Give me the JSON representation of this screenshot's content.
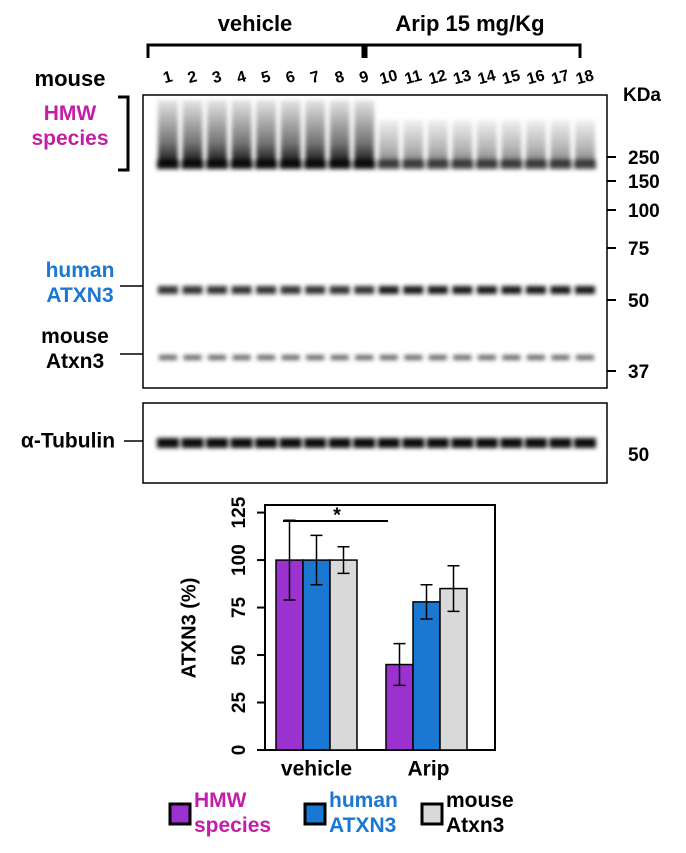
{
  "blot": {
    "groups": [
      "vehicle",
      "Arip 15 mg/Kg"
    ],
    "row_label": "mouse",
    "lanes": [
      "1",
      "2",
      "3",
      "4",
      "5",
      "6",
      "7",
      "8",
      "9",
      "10",
      "11",
      "12",
      "13",
      "14",
      "15",
      "16",
      "17",
      "18"
    ],
    "unit": "KDa",
    "markers": [
      250,
      150,
      100,
      75,
      50,
      37
    ],
    "band_labels": [
      "HMW species",
      "human ATXN3",
      "mouse Atxn3"
    ],
    "loading_label": "α-Tubulin",
    "loading_marker": 50
  },
  "chart_data": {
    "type": "bar",
    "ylabel": "ATXN3 (%)",
    "categories": [
      "vehicle",
      "Arip"
    ],
    "series": [
      {
        "name": "HMW species",
        "color": "#9b32cf",
        "values": [
          100,
          45
        ],
        "errors": [
          21,
          11
        ]
      },
      {
        "name": "human ATXN3",
        "color": "#1b78d2",
        "values": [
          100,
          78
        ],
        "errors": [
          13,
          9
        ]
      },
      {
        "name": "mouse Atxn3",
        "color": "#d9d9d9",
        "values": [
          100,
          85
        ],
        "errors": [
          7,
          12
        ]
      }
    ],
    "ylim": [
      0,
      129
    ],
    "yticks": [
      0,
      25,
      50,
      75,
      100,
      125
    ],
    "annotation": "*"
  }
}
